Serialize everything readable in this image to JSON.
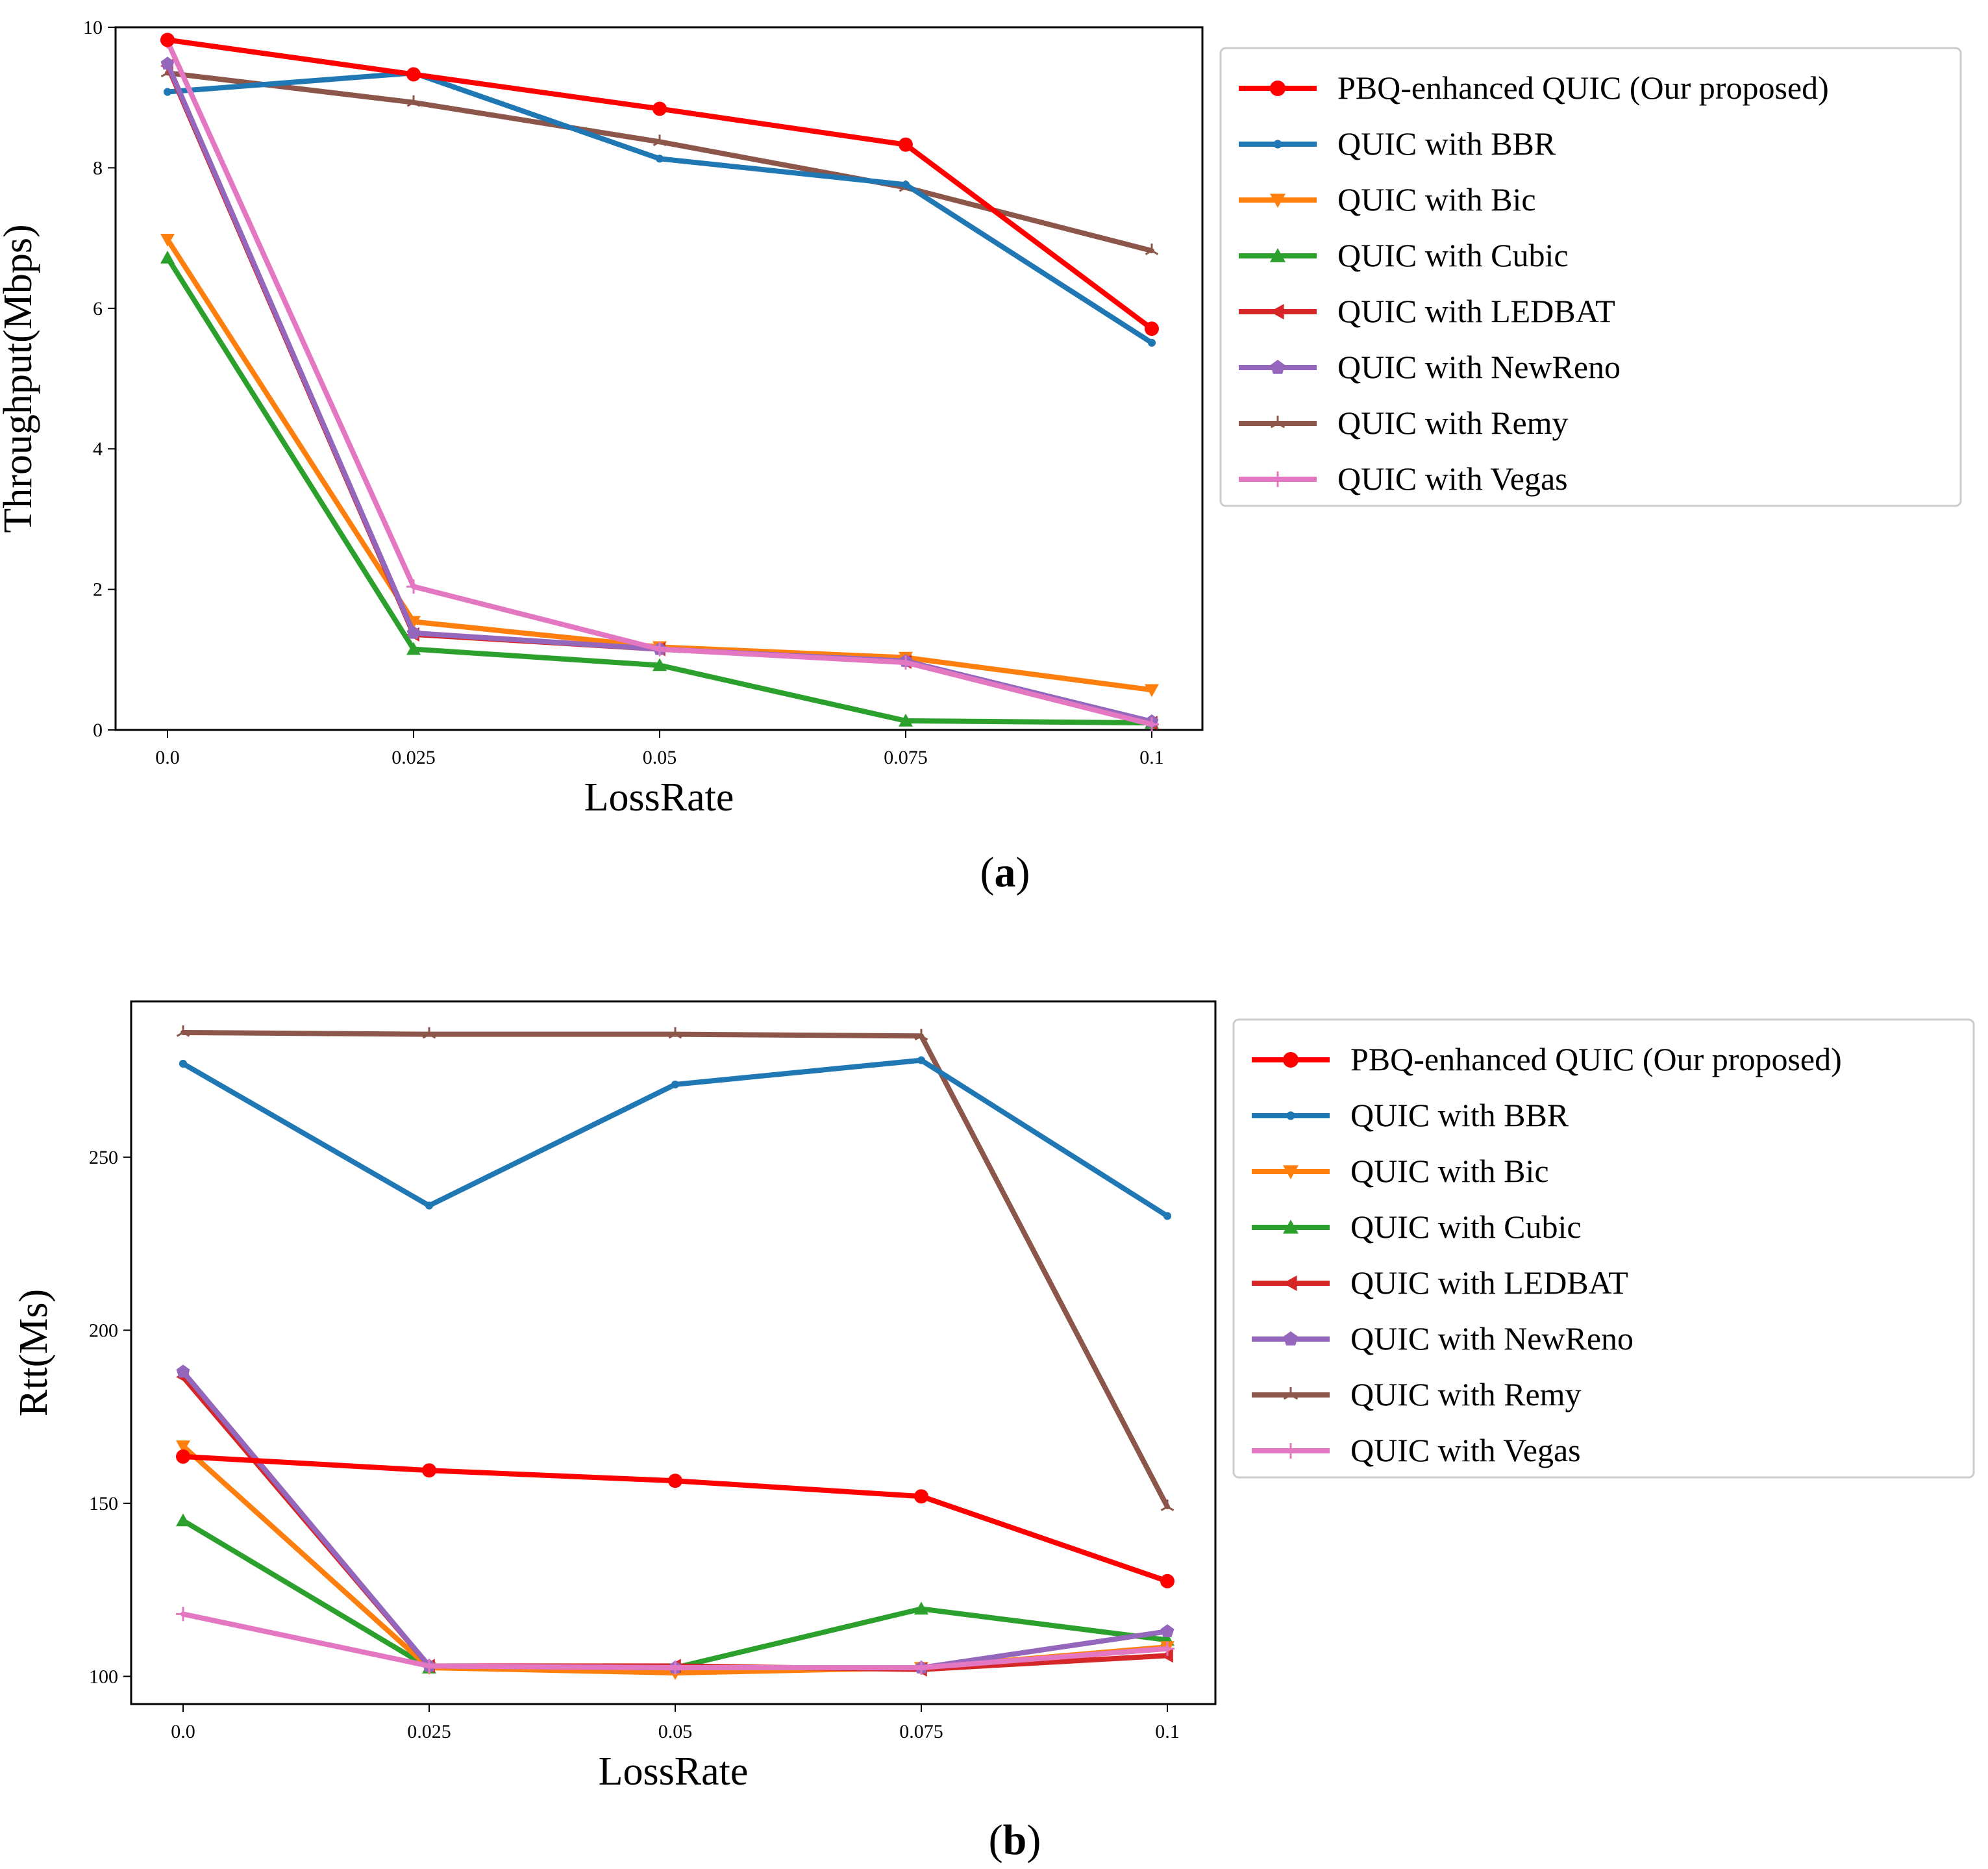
{
  "chart_data": [
    {
      "type": "line",
      "panel": "a",
      "caption_letter": "a",
      "xlabel": "LossRate",
      "ylabel": "Throughput(Mbps)",
      "x": [
        0.0,
        0.025,
        0.05,
        0.075,
        0.1
      ],
      "xtick_labels": [
        "0.0",
        "0.025",
        "0.05",
        "0.075",
        "0.1"
      ],
      "ylim": [
        0,
        10
      ],
      "yticks": [
        0,
        2,
        4,
        6,
        8,
        10
      ],
      "ytick_labels": [
        "0",
        "2",
        "4",
        "6",
        "8",
        "10"
      ],
      "legend_position": "outside-right-top",
      "series": [
        {
          "name": "QUIC with Remy",
          "color": "#8c564b",
          "marker": "tri_up",
          "values": [
            9.35,
            8.93,
            8.37,
            7.72,
            6.82
          ]
        },
        {
          "name": "QUIC with BBR",
          "color": "#1f77b4",
          "marker": "point",
          "values": [
            9.08,
            9.35,
            8.13,
            7.76,
            5.51
          ]
        },
        {
          "name": "QUIC with Cubic",
          "color": "#2ca02c",
          "marker": "triangle_up",
          "values": [
            6.72,
            1.15,
            0.92,
            0.13,
            0.1
          ]
        },
        {
          "name": "QUIC with Bic",
          "color": "#ff7f0e",
          "marker": "triangle_down",
          "values": [
            6.98,
            1.54,
            1.18,
            1.03,
            0.57
          ]
        },
        {
          "name": "QUIC with LEDBAT",
          "color": "#d62728",
          "marker": "triangle_left",
          "values": [
            9.45,
            1.36,
            1.15,
            0.97,
            0.1
          ]
        },
        {
          "name": "QUIC with NewReno",
          "color": "#9467bd",
          "marker": "pentagon",
          "values": [
            9.48,
            1.38,
            1.15,
            0.98,
            0.12
          ]
        },
        {
          "name": "QUIC with Vegas",
          "color": "#e377c2",
          "marker": "plus",
          "values": [
            9.8,
            2.04,
            1.15,
            0.96,
            0.08
          ]
        },
        {
          "name": "PBQ-enhanced QUIC (Our proposed)",
          "color": "#ff0000",
          "marker": "circle",
          "values": [
            9.82,
            9.33,
            8.84,
            8.33,
            5.71
          ]
        }
      ],
      "legend": [
        {
          "label": "PBQ-enhanced QUIC (Our proposed)",
          "color": "#ff0000",
          "marker": "circle"
        },
        {
          "label": "QUIC with BBR",
          "color": "#1f77b4",
          "marker": "point"
        },
        {
          "label": "QUIC with Bic",
          "color": "#ff7f0e",
          "marker": "triangle_down"
        },
        {
          "label": "QUIC with Cubic",
          "color": "#2ca02c",
          "marker": "triangle_up"
        },
        {
          "label": "QUIC with LEDBAT",
          "color": "#d62728",
          "marker": "triangle_left"
        },
        {
          "label": "QUIC with NewReno",
          "color": "#9467bd",
          "marker": "pentagon"
        },
        {
          "label": "QUIC with Remy",
          "color": "#8c564b",
          "marker": "tri_up"
        },
        {
          "label": "QUIC with Vegas",
          "color": "#e377c2",
          "marker": "plus"
        }
      ]
    },
    {
      "type": "line",
      "panel": "b",
      "caption_letter": "b",
      "xlabel": "LossRate",
      "ylabel": "Rtt(Ms)",
      "x": [
        0.0,
        0.025,
        0.05,
        0.075,
        0.1
      ],
      "xtick_labels": [
        "0.0",
        "0.025",
        "0.05",
        "0.075",
        "0.1"
      ],
      "ylim": [
        92,
        295
      ],
      "yticks": [
        100,
        150,
        200,
        250
      ],
      "ytick_labels": [
        "100",
        "150",
        "200",
        "250"
      ],
      "legend_position": "outside-right-top",
      "series": [
        {
          "name": "QUIC with Remy",
          "color": "#8c564b",
          "marker": "tri_up",
          "values": [
            286,
            285.5,
            285.5,
            285,
            149
          ]
        },
        {
          "name": "QUIC with BBR",
          "color": "#1f77b4",
          "marker": "point",
          "values": [
            277,
            236,
            271,
            278,
            233
          ]
        },
        {
          "name": "QUIC with Cubic",
          "color": "#2ca02c",
          "marker": "triangle_up",
          "values": [
            145,
            102.5,
            102.5,
            119.5,
            110.5
          ]
        },
        {
          "name": "QUIC with Bic",
          "color": "#ff7f0e",
          "marker": "triangle_down",
          "values": [
            166.5,
            102.5,
            101,
            102.5,
            108.5
          ]
        },
        {
          "name": "QUIC with LEDBAT",
          "color": "#d62728",
          "marker": "triangle_left",
          "values": [
            186.5,
            103,
            103,
            102,
            106
          ]
        },
        {
          "name": "QUIC with NewReno",
          "color": "#9467bd",
          "marker": "pentagon",
          "values": [
            188,
            103,
            102.5,
            102.5,
            113
          ]
        },
        {
          "name": "QUIC with Vegas",
          "color": "#e377c2",
          "marker": "plus",
          "values": [
            118,
            103,
            102.5,
            102.5,
            108
          ]
        },
        {
          "name": "PBQ-enhanced QUIC (Our proposed)",
          "color": "#ff0000",
          "marker": "circle",
          "values": [
            163.5,
            159.5,
            156.5,
            152,
            127.5
          ]
        }
      ],
      "legend": [
        {
          "label": "PBQ-enhanced QUIC (Our proposed)",
          "color": "#ff0000",
          "marker": "circle"
        },
        {
          "label": "QUIC with BBR",
          "color": "#1f77b4",
          "marker": "point"
        },
        {
          "label": "QUIC with Bic",
          "color": "#ff7f0e",
          "marker": "triangle_down"
        },
        {
          "label": "QUIC with Cubic",
          "color": "#2ca02c",
          "marker": "triangle_up"
        },
        {
          "label": "QUIC with LEDBAT",
          "color": "#d62728",
          "marker": "triangle_left"
        },
        {
          "label": "QUIC with NewReno",
          "color": "#9467bd",
          "marker": "pentagon"
        },
        {
          "label": "QUIC with Remy",
          "color": "#8c564b",
          "marker": "tri_up"
        },
        {
          "label": "QUIC with Vegas",
          "color": "#e377c2",
          "marker": "plus"
        }
      ]
    }
  ]
}
